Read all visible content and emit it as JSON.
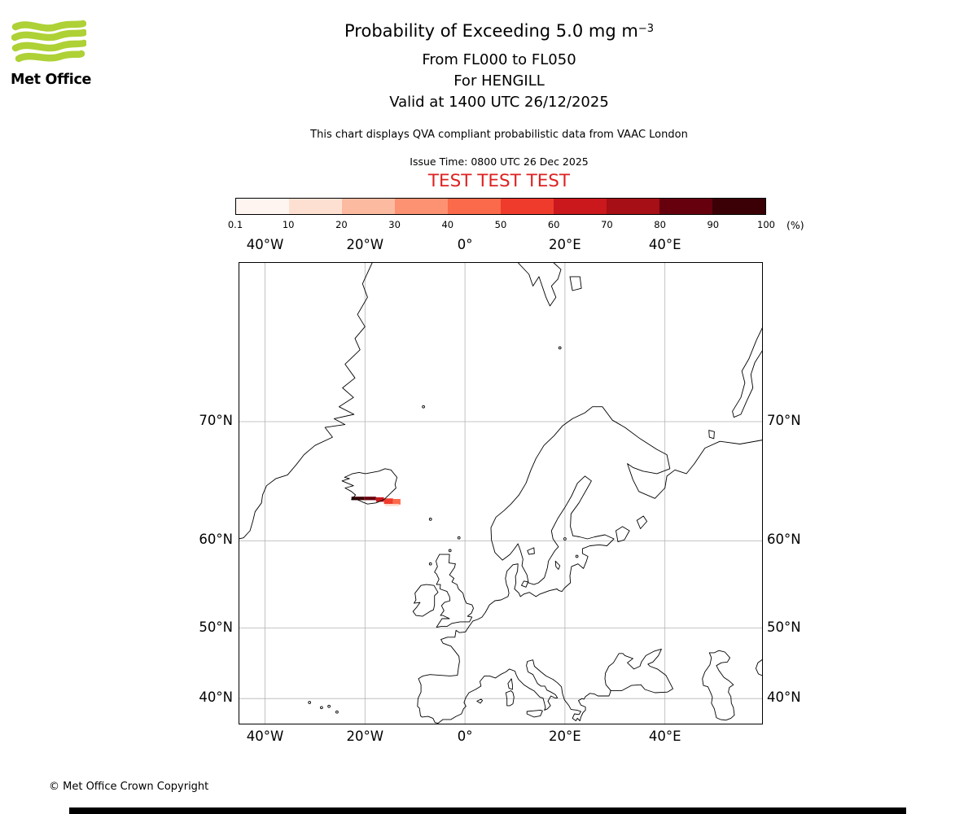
{
  "header": {
    "logo_text": "Met Office",
    "title_main": "Probability of Exceeding 5.0 mg m",
    "title_sup": "−3",
    "line2": "From FL000 to FL050",
    "line3": "For HENGILL",
    "line4": "Valid at 1400 UTC 26/12/2025",
    "note": "This chart displays QVA compliant probabilistic data from VAAC London",
    "issue_time": "Issue Time: 0800 UTC 26 Dec 2025",
    "test_text": "TEST TEST TEST"
  },
  "colors": {
    "logo_green": "#aed136",
    "test_red": "#dd2222",
    "grid_gray": "#b3b3b3",
    "coast_black": "#000000"
  },
  "colorbar": {
    "tick_labels": [
      "0.1",
      "10",
      "20",
      "30",
      "40",
      "50",
      "60",
      "70",
      "80",
      "90",
      "100"
    ],
    "unit_label": "(%)",
    "segment_colors": [
      "#fff5f0",
      "#fee0d2",
      "#fcbba1",
      "#fc9272",
      "#fb6a4a",
      "#ef3b2c",
      "#cb181d",
      "#a50f15",
      "#67000d",
      "#3b0006"
    ]
  },
  "map": {
    "lon_tick_labels": [
      "40°W",
      "20°W",
      "0°",
      "20°E",
      "40°E"
    ],
    "lon_tick_values": [
      -40,
      -20,
      0,
      20,
      40
    ],
    "lat_tick_labels": [
      "70°N",
      "60°N",
      "50°N",
      "40°N"
    ],
    "lat_tick_values": [
      70,
      60,
      50,
      40
    ]
  },
  "chart_data": {
    "type": "heatmap",
    "title": "Probability of Exceeding 5.0 mg m⁻³",
    "flight_levels": "From FL000 to FL050",
    "volcano": "HENGILL",
    "valid_time": "1400 UTC 26/12/2025",
    "issue_time": "0800 UTC 26 Dec 2025",
    "source": "VAAC London",
    "unit": "%",
    "projection": "mercator",
    "lon_range": [
      -45.3,
      59.6
    ],
    "lat_range": [
      35.9,
      78.5
    ],
    "colorbar_bins": [
      0.1,
      10,
      20,
      30,
      40,
      50,
      60,
      70,
      80,
      90,
      100
    ],
    "plume_cells": [
      {
        "lon_min": -22.7,
        "lon_max": -20.2,
        "lat_min": 63.85,
        "lat_max": 64.15,
        "probability": 100
      },
      {
        "lon_min": -20.2,
        "lon_max": -17.8,
        "lat_min": 63.85,
        "lat_max": 64.15,
        "probability": 90
      },
      {
        "lon_min": -17.8,
        "lon_max": -16.2,
        "lat_min": 63.7,
        "lat_max": 64.1,
        "probability": 70
      },
      {
        "lon_min": -16.2,
        "lon_max": -14.4,
        "lat_min": 63.5,
        "lat_max": 64.0,
        "probability": 60
      },
      {
        "lon_min": -14.4,
        "lon_max": -12.9,
        "lat_min": 63.45,
        "lat_max": 63.95,
        "probability": 50
      },
      {
        "lon_min": -16.0,
        "lon_max": -13.2,
        "lat_min": 63.3,
        "lat_max": 63.5,
        "probability": 20
      }
    ]
  },
  "footer": {
    "copyright": "© Met Office Crown Copyright"
  }
}
